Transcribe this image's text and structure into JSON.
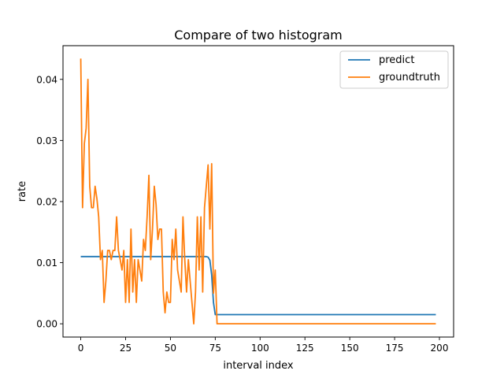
{
  "chart_data": {
    "type": "line",
    "title": "Compare of two histogram",
    "xlabel": "interval index",
    "ylabel": "rate",
    "xlim": [
      -9.9,
      207.9
    ],
    "ylim": [
      -0.00217,
      0.04551
    ],
    "xticks": [
      0,
      25,
      50,
      75,
      100,
      125,
      150,
      175,
      200
    ],
    "yticks": [
      0.0,
      0.01,
      0.02,
      0.03,
      0.04
    ],
    "xtick_labels": [
      "0",
      "25",
      "50",
      "75",
      "100",
      "125",
      "150",
      "175",
      "200"
    ],
    "ytick_labels": [
      "0.00",
      "0.01",
      "0.02",
      "0.03",
      "0.04"
    ],
    "grid": false,
    "legend_position": "top-right",
    "series": [
      {
        "name": "predict",
        "color": "#1f77b4",
        "points": [
          [
            0,
            0.011
          ],
          [
            70,
            0.011
          ],
          [
            71,
            0.0109
          ],
          [
            72,
            0.0104
          ],
          [
            73,
            0.008
          ],
          [
            74,
            0.0035
          ],
          [
            75,
            0.0015
          ],
          [
            198,
            0.0015
          ]
        ]
      },
      {
        "name": "groundtruth",
        "color": "#ff7f0e",
        "points": [
          [
            0,
            0.0434
          ],
          [
            1,
            0.019
          ],
          [
            2,
            0.0295
          ],
          [
            3,
            0.032
          ],
          [
            4,
            0.04
          ],
          [
            5,
            0.0225
          ],
          [
            6,
            0.019
          ],
          [
            7,
            0.019
          ],
          [
            8,
            0.0225
          ],
          [
            9,
            0.0205
          ],
          [
            10,
            0.0175
          ],
          [
            11,
            0.0105
          ],
          [
            12,
            0.012
          ],
          [
            13,
            0.0035
          ],
          [
            14,
            0.007
          ],
          [
            15,
            0.012
          ],
          [
            16,
            0.012
          ],
          [
            17,
            0.0105
          ],
          [
            18,
            0.012
          ],
          [
            19,
            0.012
          ],
          [
            20,
            0.0175
          ],
          [
            21,
            0.012
          ],
          [
            22,
            0.0105
          ],
          [
            23,
            0.0088
          ],
          [
            24,
            0.012
          ],
          [
            25,
            0.0035
          ],
          [
            26,
            0.0105
          ],
          [
            27,
            0.0035
          ],
          [
            28,
            0.0155
          ],
          [
            29,
            0.0052
          ],
          [
            30,
            0.0105
          ],
          [
            31,
            0.0035
          ],
          [
            32,
            0.0105
          ],
          [
            33,
            0.0088
          ],
          [
            34,
            0.007
          ],
          [
            35,
            0.0138
          ],
          [
            36,
            0.012
          ],
          [
            37,
            0.0175
          ],
          [
            38,
            0.0243
          ],
          [
            39,
            0.0105
          ],
          [
            40,
            0.0155
          ],
          [
            41,
            0.0225
          ],
          [
            42,
            0.0195
          ],
          [
            43,
            0.0138
          ],
          [
            44,
            0.0155
          ],
          [
            45,
            0.0155
          ],
          [
            46,
            0.0052
          ],
          [
            47,
            0.0018
          ],
          [
            48,
            0.0052
          ],
          [
            49,
            0.0035
          ],
          [
            50,
            0.0035
          ],
          [
            51,
            0.0138
          ],
          [
            52,
            0.0105
          ],
          [
            53,
            0.0155
          ],
          [
            54,
            0.0088
          ],
          [
            55,
            0.007
          ],
          [
            56,
            0.0052
          ],
          [
            57,
            0.0175
          ],
          [
            58,
            0.0105
          ],
          [
            59,
            0.0052
          ],
          [
            60,
            0.0105
          ],
          [
            61,
            0.007
          ],
          [
            62,
            0.0035
          ],
          [
            63,
            0.0
          ],
          [
            64,
            0.0052
          ],
          [
            65,
            0.0175
          ],
          [
            66,
            0.0088
          ],
          [
            67,
            0.0175
          ],
          [
            68,
            0.0052
          ],
          [
            69,
            0.019
          ],
          [
            70,
            0.0225
          ],
          [
            71,
            0.026
          ],
          [
            72,
            0.0155
          ],
          [
            73,
            0.0262
          ],
          [
            74,
            0.005
          ],
          [
            75,
            0.0088
          ],
          [
            76,
            0.0
          ],
          [
            198,
            0.0
          ]
        ]
      }
    ]
  }
}
